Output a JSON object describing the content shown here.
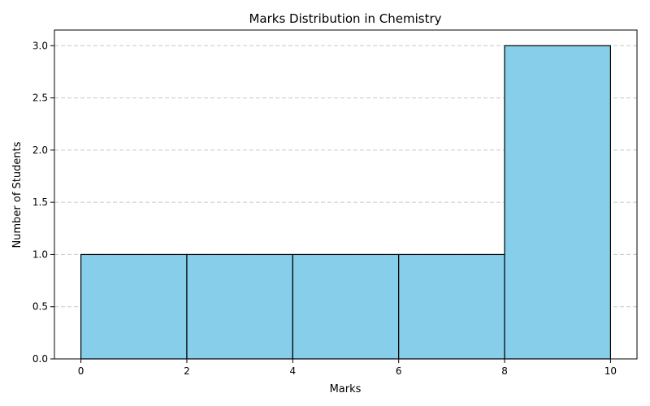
{
  "chart_data": {
    "type": "bar",
    "title": "Marks Distribution in Chemistry",
    "xlabel": "Marks",
    "ylabel": "Number of Students",
    "bins": [
      {
        "start": 0,
        "end": 2,
        "value": 1
      },
      {
        "start": 2,
        "end": 4,
        "value": 1
      },
      {
        "start": 4,
        "end": 6,
        "value": 1
      },
      {
        "start": 6,
        "end": 8,
        "value": 1
      },
      {
        "start": 8,
        "end": 10,
        "value": 3
      }
    ],
    "xlim": [
      -0.5,
      10.5
    ],
    "ylim": [
      0,
      3.15
    ],
    "xticks": [
      "0",
      "2",
      "4",
      "6",
      "8",
      "10"
    ],
    "yticks": [
      "0.0",
      "0.5",
      "1.0",
      "1.5",
      "2.0",
      "2.5",
      "3.0"
    ],
    "grid": "y-dashed",
    "colors": {
      "bar_fill": "#87ceeb",
      "bar_edge": "#000000",
      "grid": "#c8c8c8"
    }
  }
}
